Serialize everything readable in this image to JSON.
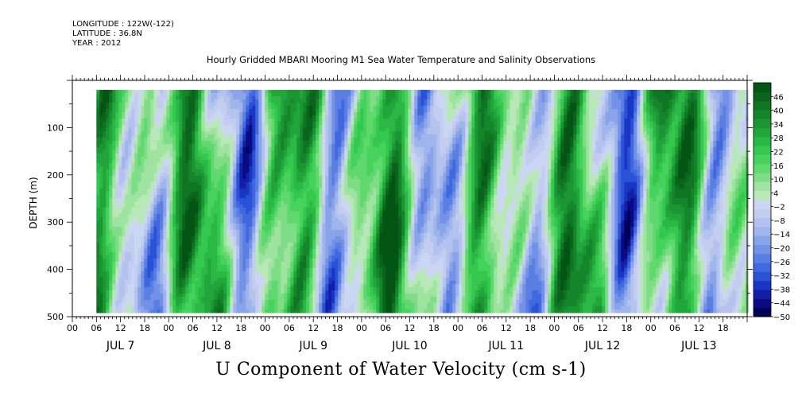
{
  "header": {
    "longitude": "LONGITUDE : 122W(-122)",
    "latitude": "LATITUDE : 36.8N",
    "year": "YEAR : 2012"
  },
  "chart_data": {
    "type": "heatmap",
    "title": "Hourly Gridded MBARI Mooring M1 Sea Water Temperature and Salinity Observations",
    "xlabel": "U Component of Water Velocity (cm s-1)",
    "ylabel": "DEPTH (m)",
    "y_inverted": true,
    "ylim": [
      500,
      0
    ],
    "y_ticks": [
      100,
      200,
      300,
      400,
      500
    ],
    "y_tick_labels": [
      "100",
      "200",
      "300",
      "400",
      "500"
    ],
    "depth_range_data": [
      20,
      485
    ],
    "x_days": [
      "JUL 7",
      "JUL 8",
      "JUL 9",
      "JUL 10",
      "JUL 11",
      "JUL 12",
      "JUL 13"
    ],
    "x_hour_labels": [
      "00",
      "06",
      "12",
      "18"
    ],
    "x_start_hour": 6,
    "color_scale": {
      "labels": [
        "46",
        "40",
        "34",
        "28",
        "22",
        "16",
        "10",
        "4",
        "-2",
        "-8",
        "-14",
        "-20",
        "-26",
        "-32",
        "-38",
        "-44",
        "-50"
      ],
      "min": -50,
      "max": 52,
      "step": 3,
      "colors_low_to_high": [
        "#00005a",
        "#0a0a82",
        "#141fa6",
        "#1a36c4",
        "#2a52d6",
        "#4268df",
        "#5a7fe2",
        "#7391e6",
        "#8aa4e9",
        "#a0b5ec",
        "#b3c3ee",
        "#c3cdf0",
        "#cbd6f2",
        "#b9e8b8",
        "#9ee3a0",
        "#7fdd87",
        "#5fd86e",
        "#46d25c",
        "#35c84e",
        "#2cb845",
        "#22a63c",
        "#1b9633",
        "#15852b",
        "#0f7523",
        "#0a641c",
        "#045414"
      ]
    }
  }
}
